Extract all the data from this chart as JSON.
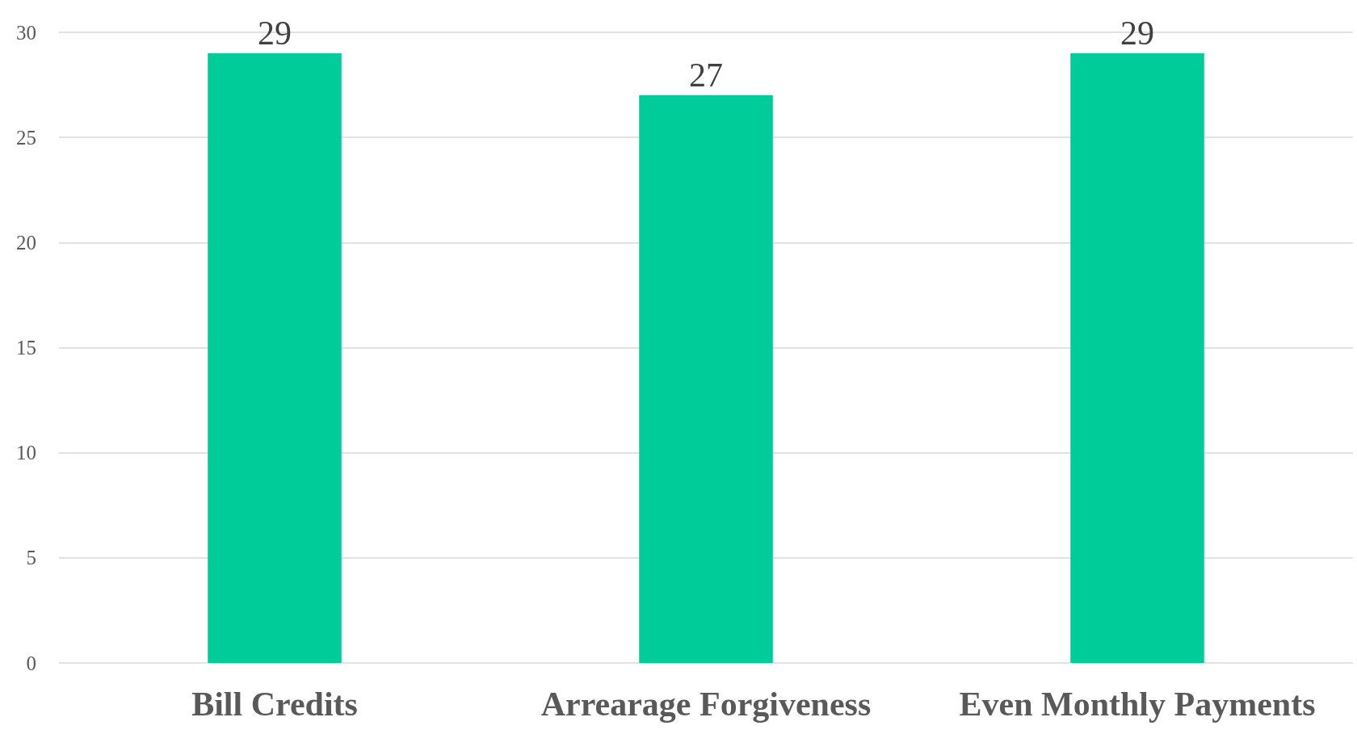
{
  "chart_data": {
    "type": "bar",
    "categories": [
      "Bill Credits",
      "Arrearage Forgiveness",
      "Even Monthly Payments"
    ],
    "values": [
      29,
      27,
      29
    ],
    "color": "#00cc99",
    "ylim": [
      0,
      30
    ],
    "yticks": [
      0,
      5,
      10,
      15,
      20,
      25,
      30
    ],
    "grid": "y",
    "data_labels": true
  }
}
